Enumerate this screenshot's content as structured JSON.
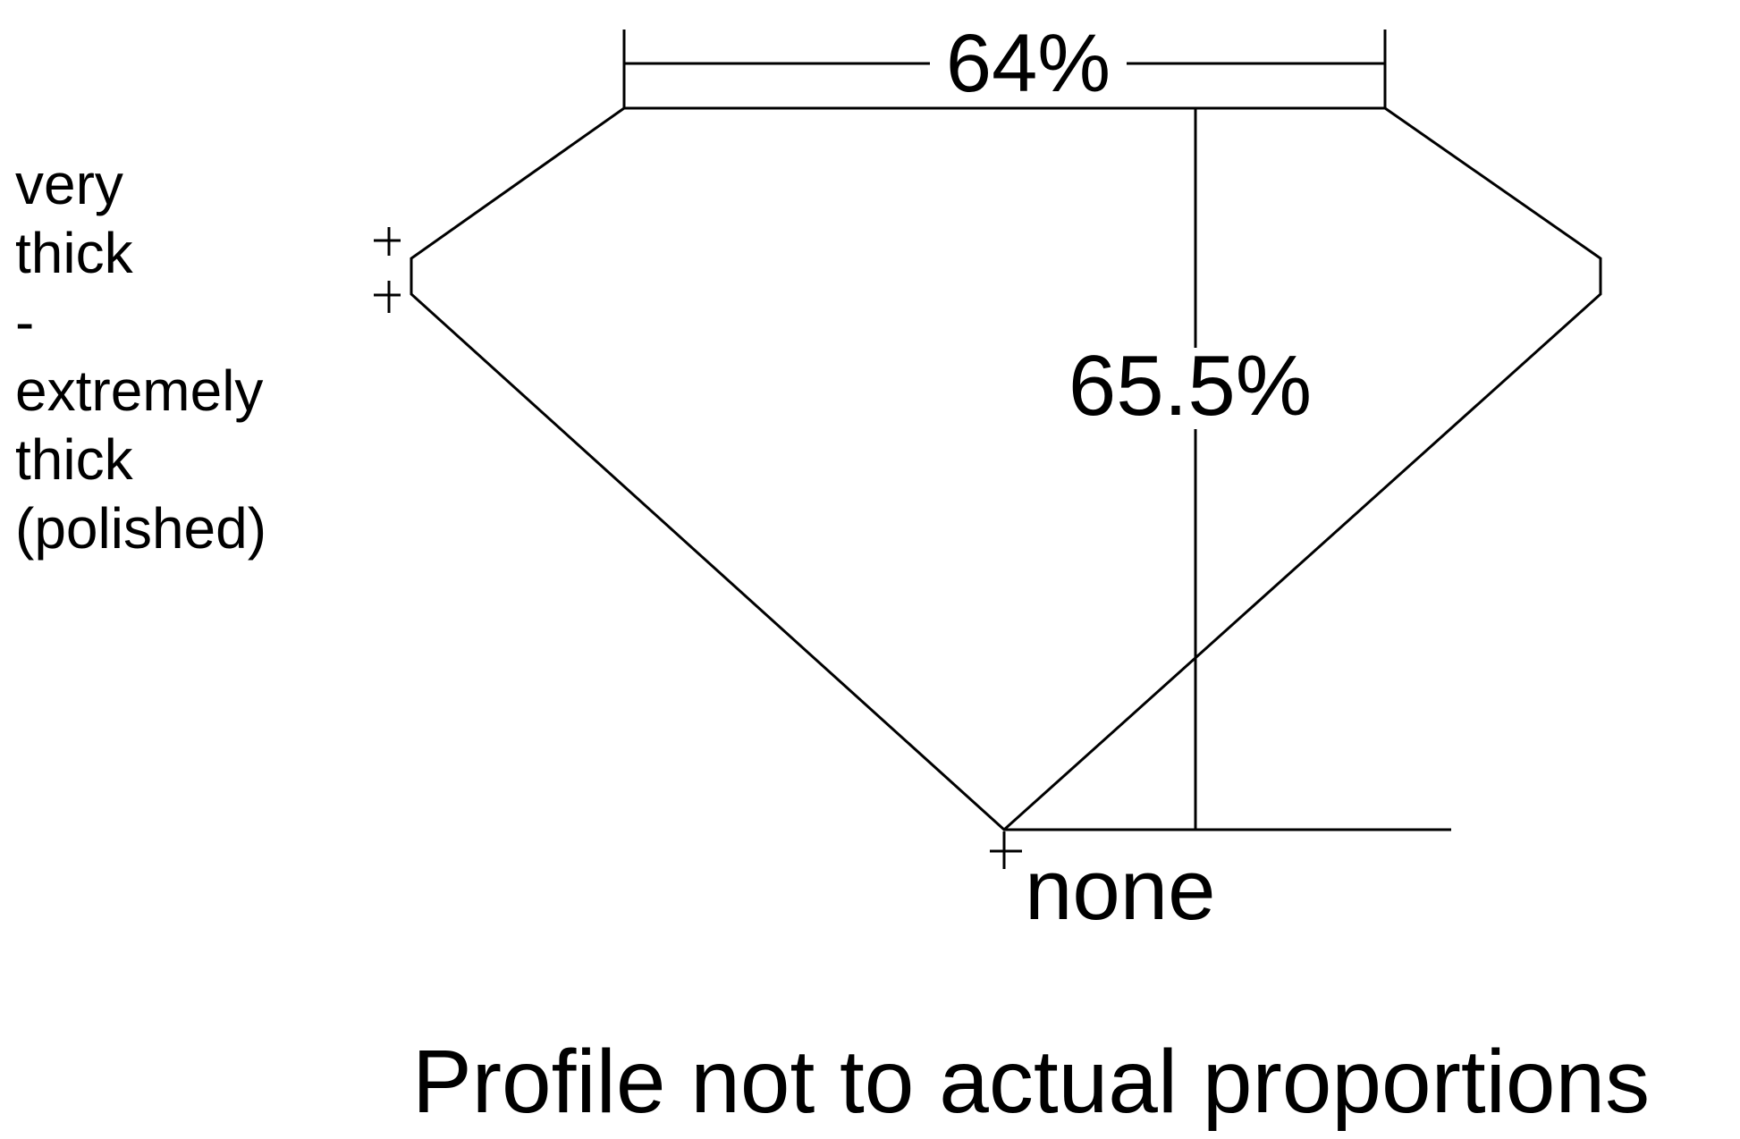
{
  "diagram": {
    "table_width": "64%",
    "total_depth": "65.5%",
    "culet": "none",
    "girdle_thickness": [
      "very",
      "thick",
      "-",
      "extremely",
      "thick",
      "(polished)"
    ],
    "caption": "Profile not to actual proportions",
    "line_color": "#000000"
  }
}
